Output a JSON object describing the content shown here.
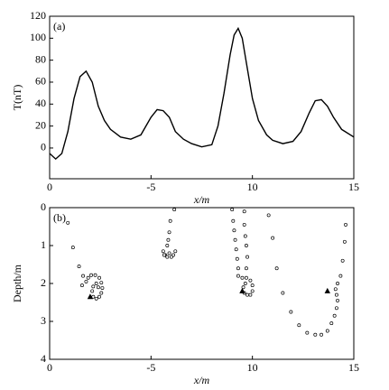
{
  "chart_data": [
    {
      "type": "line",
      "annotation": "(a)",
      "x_label": "x/m",
      "y_label": "T(nT)",
      "xlim": [
        0,
        15
      ],
      "xticks": [
        0,
        {
          "value": 5,
          "label": "-5"
        },
        10,
        15
      ],
      "ylim": [
        -28,
        120
      ],
      "yticks": [
        0,
        20,
        40,
        60,
        80,
        100,
        120
      ],
      "color": "#000000",
      "x": [
        0,
        0.3,
        0.6,
        0.9,
        1.2,
        1.5,
        1.8,
        2.1,
        2.4,
        2.7,
        3.0,
        3.5,
        4.0,
        4.5,
        5.0,
        5.3,
        5.6,
        5.9,
        6.2,
        6.6,
        7.0,
        7.5,
        8.0,
        8.3,
        8.6,
        8.9,
        9.1,
        9.3,
        9.5,
        9.7,
        10.0,
        10.3,
        10.7,
        11.0,
        11.5,
        12.0,
        12.4,
        12.8,
        13.1,
        13.4,
        13.7,
        14.0,
        14.4,
        15
      ],
      "values": [
        -5,
        -10,
        -5,
        15,
        45,
        65,
        70,
        60,
        38,
        25,
        17,
        10,
        8,
        12,
        28,
        35,
        34,
        28,
        15,
        8,
        4,
        1,
        3,
        20,
        50,
        85,
        103,
        109,
        100,
        78,
        45,
        25,
        12,
        7,
        4,
        6,
        15,
        32,
        43,
        44,
        38,
        28,
        17,
        10
      ]
    },
    {
      "type": "scatter",
      "annotation": "(b)",
      "x_label": "x/m",
      "y_label": "Depth/m",
      "xlim": [
        0,
        15
      ],
      "xticks": [
        0,
        {
          "value": 5,
          "label": "-5"
        },
        10,
        15
      ],
      "ylim": [
        4,
        0
      ],
      "yticks": [
        0,
        1,
        2,
        3,
        4
      ],
      "series": [
        {
          "marker": "circle",
          "color": "#000000",
          "x": [
            0.9,
            1.15,
            1.45,
            1.65,
            1.6,
            1.8,
            1.9,
            2.05,
            2.25,
            2.45,
            2.55,
            2.6,
            2.55,
            2.45,
            2.3,
            2.15,
            2.1,
            2.15,
            2.3,
            2.4,
            6.15,
            5.95,
            5.9,
            5.85,
            5.8,
            5.6,
            5.7,
            5.9,
            6.1,
            6.2,
            6.0,
            5.8,
            5.65,
            9.0,
            9.05,
            9.1,
            9.15,
            9.2,
            9.25,
            9.3,
            9.3,
            9.6,
            9.6,
            9.65,
            9.7,
            9.75,
            9.7,
            9.5,
            9.7,
            9.9,
            10.0,
            10.0,
            9.9,
            9.75,
            9.6,
            9.55,
            9.65,
            10.8,
            11.0,
            11.2,
            11.5,
            11.9,
            12.3,
            12.7,
            13.1,
            13.4,
            13.7,
            13.9,
            14.05,
            14.15,
            14.2,
            14.15,
            14.1,
            14.2,
            14.35,
            14.45,
            14.55,
            14.6
          ],
          "values": [
            0.4,
            1.05,
            1.55,
            1.8,
            2.05,
            1.95,
            1.85,
            1.78,
            1.78,
            1.85,
            1.98,
            2.12,
            2.25,
            2.35,
            2.4,
            2.35,
            2.2,
            2.08,
            2.0,
            2.1,
            0.05,
            0.35,
            0.65,
            0.85,
            1.0,
            1.15,
            1.25,
            1.2,
            1.25,
            1.15,
            1.3,
            1.3,
            1.25,
            0.05,
            0.35,
            0.6,
            0.85,
            1.1,
            1.35,
            1.6,
            1.8,
            0.1,
            0.45,
            0.75,
            1.0,
            1.3,
            1.6,
            1.85,
            1.85,
            1.92,
            2.05,
            2.2,
            2.3,
            2.3,
            2.25,
            2.1,
            2.0,
            0.2,
            0.8,
            1.6,
            2.25,
            2.75,
            3.1,
            3.3,
            3.35,
            3.35,
            3.25,
            3.05,
            2.85,
            2.65,
            2.45,
            2.3,
            2.15,
            2.0,
            1.8,
            1.4,
            0.9,
            0.45
          ]
        },
        {
          "marker": "triangle",
          "color": "#000000",
          "x": [
            2.0,
            9.5,
            13.7
          ],
          "values": [
            2.35,
            2.2,
            2.2
          ]
        }
      ]
    }
  ]
}
